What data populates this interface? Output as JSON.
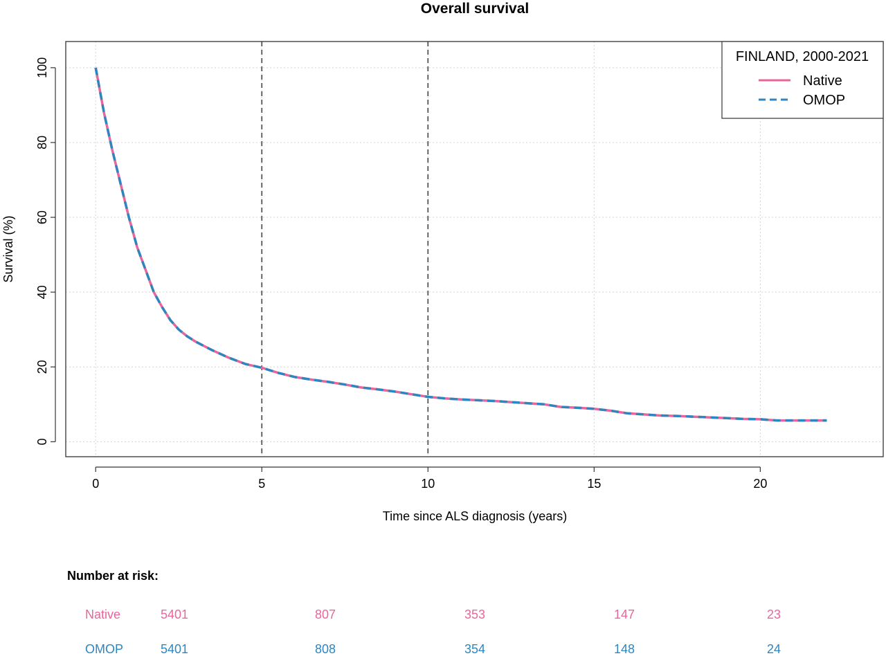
{
  "chart_data": {
    "type": "line",
    "title": "Overall survival",
    "xlabel": "Time since ALS diagnosis (years)",
    "ylabel": "Survival (%)",
    "xlim": [
      -0.9,
      23.7
    ],
    "ylim": [
      -4,
      107
    ],
    "x_ticks": [
      0,
      5,
      10,
      15,
      20
    ],
    "y_ticks": [
      0,
      20,
      40,
      60,
      80,
      100
    ],
    "grid": true,
    "vertical_reference_lines": [
      5,
      10
    ],
    "legend": {
      "title": "FINLAND, 2000-2021",
      "position": "top-right",
      "entries": [
        "Native",
        "OMOP"
      ]
    },
    "series": [
      {
        "name": "Native",
        "color": "#E8669A",
        "style": "solid",
        "x": [
          0,
          0.25,
          0.5,
          0.75,
          1,
          1.25,
          1.5,
          1.75,
          2,
          2.25,
          2.5,
          2.75,
          3,
          3.5,
          4,
          4.5,
          5,
          5.5,
          6,
          6.5,
          7,
          7.5,
          8,
          8.5,
          9,
          9.5,
          10,
          10.5,
          11,
          11.5,
          12,
          12.5,
          13,
          13.5,
          14,
          14.5,
          15,
          15.5,
          16,
          16.5,
          17,
          17.5,
          18,
          18.5,
          19,
          19.5,
          20,
          20.5,
          21,
          21.5,
          22
        ],
        "y": [
          100,
          88,
          78,
          69,
          60,
          52,
          46,
          40,
          36,
          32.5,
          30,
          28.2,
          26.8,
          24.5,
          22.5,
          20.8,
          19.8,
          18.4,
          17.3,
          16.6,
          16,
          15.3,
          14.5,
          14,
          13.4,
          12.7,
          12,
          11.6,
          11.3,
          11.1,
          10.9,
          10.6,
          10.3,
          10,
          9.3,
          9.1,
          8.8,
          8.3,
          7.6,
          7.3,
          7,
          6.9,
          6.7,
          6.5,
          6.3,
          6.1,
          6.0,
          5.7,
          5.7,
          5.7,
          5.7
        ]
      },
      {
        "name": "OMOP",
        "color": "#2E86C1",
        "style": "dashed",
        "x": [
          0,
          0.25,
          0.5,
          0.75,
          1,
          1.25,
          1.5,
          1.75,
          2,
          2.25,
          2.5,
          2.75,
          3,
          3.5,
          4,
          4.5,
          5,
          5.5,
          6,
          6.5,
          7,
          7.5,
          8,
          8.5,
          9,
          9.5,
          10,
          10.5,
          11,
          11.5,
          12,
          12.5,
          13,
          13.5,
          14,
          14.5,
          15,
          15.5,
          16,
          16.5,
          17,
          17.5,
          18,
          18.5,
          19,
          19.5,
          20,
          20.5,
          21,
          21.5,
          22
        ],
        "y": [
          100,
          88,
          78,
          69,
          60,
          52,
          46,
          40,
          36,
          32.5,
          30,
          28.2,
          26.8,
          24.5,
          22.5,
          20.8,
          19.8,
          18.4,
          17.3,
          16.6,
          16,
          15.3,
          14.5,
          14,
          13.4,
          12.7,
          12,
          11.6,
          11.3,
          11.1,
          10.9,
          10.6,
          10.3,
          10,
          9.3,
          9.1,
          8.8,
          8.3,
          7.6,
          7.3,
          7,
          6.9,
          6.7,
          6.5,
          6.3,
          6.1,
          6.0,
          5.7,
          5.7,
          5.7,
          5.7
        ]
      }
    ],
    "risk_table": {
      "heading": "Number at risk:",
      "rows": [
        {
          "name": "Native",
          "color": "#E8669A",
          "values": [
            "5401",
            "807",
            "353",
            "147",
            "23"
          ]
        },
        {
          "name": "OMOP",
          "color": "#2E86C1",
          "values": [
            "5401",
            "808",
            "354",
            "148",
            "24"
          ]
        }
      ]
    }
  }
}
